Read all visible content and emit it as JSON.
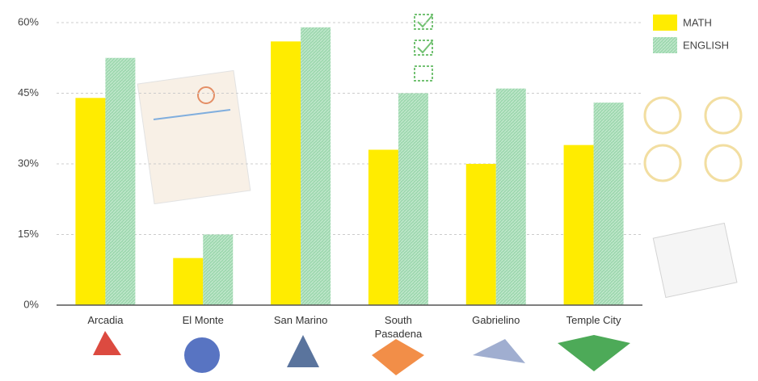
{
  "chart_data": {
    "type": "bar",
    "categories": [
      "Arcadia",
      "El Monte",
      "San Marino",
      "South Pasadena",
      "Gabrielino",
      "Temple City"
    ],
    "series": [
      {
        "name": "MATH",
        "color": "#ffec00",
        "values": [
          44,
          10,
          56,
          33,
          30,
          34
        ]
      },
      {
        "name": "ENGLISH",
        "color": "#9fd8b0",
        "values": [
          52.5,
          15,
          59,
          45,
          46,
          43
        ]
      }
    ],
    "ylim": [
      0,
      60
    ],
    "yticks": [
      {
        "value": 0,
        "label": "0%"
      },
      {
        "value": 15,
        "label": "15%"
      },
      {
        "value": 30,
        "label": "30%"
      },
      {
        "value": 45,
        "label": "45%"
      },
      {
        "value": 60,
        "label": "60%"
      }
    ],
    "grid": true,
    "legend": "top-right"
  }
}
